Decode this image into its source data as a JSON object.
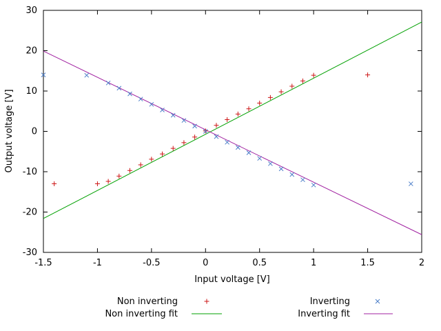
{
  "chart_data": {
    "type": "scatter",
    "title": "",
    "xlabel": "Input voltage [V]",
    "ylabel": "Output voltage [V]",
    "xlim": [
      -1.5,
      2
    ],
    "ylim": [
      -30,
      30
    ],
    "xtick_values": [
      -1.5,
      -1,
      -0.5,
      0,
      0.5,
      1,
      1.5,
      2
    ],
    "xtick_labels": [
      "-1.5",
      "-1",
      "-0.5",
      "0",
      "0.5",
      "1",
      "1.5",
      "2"
    ],
    "ytick_values": [
      -30,
      -20,
      -10,
      0,
      10,
      20,
      30
    ],
    "ytick_labels": [
      "-30",
      "-20",
      "-10",
      "0",
      "10",
      "20",
      "30"
    ],
    "grid": false,
    "legend_position": "below-plot, two columns",
    "series": [
      {
        "name": "Non inverting",
        "type": "points",
        "marker": "plus",
        "color": "#cc1414",
        "points": [
          [
            -1.4,
            -13
          ],
          [
            -1,
            -13
          ],
          [
            -0.9,
            -12.4
          ],
          [
            -0.8,
            -11.1
          ],
          [
            -0.7,
            -9.7
          ],
          [
            -0.6,
            -8.3
          ],
          [
            -0.5,
            -6.9
          ],
          [
            -0.4,
            -5.6
          ],
          [
            -0.3,
            -4.2
          ],
          [
            -0.2,
            -2.8
          ],
          [
            -0.1,
            -1.4
          ],
          [
            0,
            0.1
          ],
          [
            0.1,
            1.5
          ],
          [
            0.2,
            2.9
          ],
          [
            0.3,
            4.3
          ],
          [
            0.4,
            5.6
          ],
          [
            0.5,
            7
          ],
          [
            0.6,
            8.4
          ],
          [
            0.7,
            9.8
          ],
          [
            0.8,
            11.2
          ],
          [
            0.9,
            12.5
          ],
          [
            1,
            13.9
          ],
          [
            1.5,
            14
          ]
        ]
      },
      {
        "name": "Inverting",
        "type": "points",
        "marker": "cross",
        "color": "#4a7dc8",
        "points": [
          [
            -1.5,
            14
          ],
          [
            -1.1,
            13.9
          ],
          [
            -0.9,
            12
          ],
          [
            -0.8,
            10.7
          ],
          [
            -0.7,
            9.3
          ],
          [
            -0.6,
            8
          ],
          [
            -0.5,
            6.7
          ],
          [
            -0.4,
            5.3
          ],
          [
            -0.3,
            4
          ],
          [
            -0.2,
            2.7
          ],
          [
            -0.1,
            1.3
          ],
          [
            0,
            0
          ],
          [
            0.1,
            -1.3
          ],
          [
            0.2,
            -2.7
          ],
          [
            0.3,
            -4
          ],
          [
            0.4,
            -5.3
          ],
          [
            0.5,
            -6.7
          ],
          [
            0.6,
            -8
          ],
          [
            0.7,
            -9.3
          ],
          [
            0.8,
            -10.7
          ],
          [
            0.9,
            -12
          ],
          [
            1,
            -13.3
          ],
          [
            1.9,
            -13
          ]
        ]
      },
      {
        "name": "Non inverting fit",
        "type": "line",
        "color": "#00a000",
        "points": [
          [
            -1.5,
            -21.6
          ],
          [
            2,
            27.1
          ]
        ]
      },
      {
        "name": "Inverting fit",
        "type": "line",
        "color": "#a020a0",
        "points": [
          [
            -1.5,
            19.9
          ],
          [
            2,
            -25.6
          ]
        ]
      }
    ]
  }
}
